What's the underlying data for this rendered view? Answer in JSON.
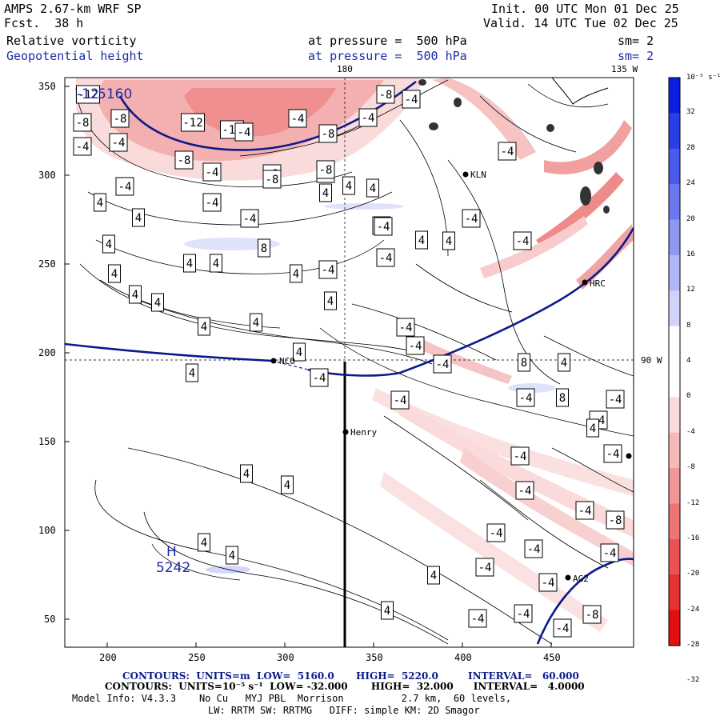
{
  "header": {
    "model": "AMPS 2.67-km WRF SP",
    "fcst": "Fcst.  38 h",
    "init": "Init. 00 UTC Mon 01 Dec 25",
    "valid": "Valid. 14 UTC Tue 02 Dec 25",
    "field1": "Relative vorticity",
    "field2": "Geopotential height",
    "press1": "at pressure =  500 hPa",
    "press2": "at pressure =  500 hPa",
    "sm1": "sm= 2",
    "sm2": "sm= 2"
  },
  "map": {
    "top_label_180": "180",
    "top_label_135w": "135 W",
    "right_label_90w": "90 W",
    "stations": [
      "KLN",
      "HRC",
      "NCO",
      "Henry",
      "AG2"
    ],
    "height_labels": [
      "5160",
      "5242"
    ],
    "high_marker": "H",
    "low_value_label": "-12"
  },
  "axes": {
    "x_ticks": [
      "200",
      "250",
      "300",
      "350",
      "400",
      "450"
    ],
    "y_ticks": [
      "50",
      "100",
      "150",
      "200",
      "250",
      "300",
      "350"
    ]
  },
  "colorbar": {
    "unit_label": "10⁻⁵ s⁻¹",
    "labels": [
      "32",
      "28",
      "24",
      "20",
      "16",
      "12",
      "8",
      "4",
      "0",
      "-4",
      "-8",
      "-12",
      "-16",
      "-20",
      "-24",
      "-28",
      "-32"
    ],
    "colors": [
      "#0a1ee0",
      "#2a3ee6",
      "#4a5aea",
      "#6c78ee",
      "#8e98f2",
      "#b0b6f6",
      "#d0d4fa",
      "#ffffff",
      "#ffffff",
      "#fbdada",
      "#f7b8b8",
      "#f39696",
      "#ef7474",
      "#eb5252",
      "#e73030",
      "#e31010"
    ]
  },
  "footer": {
    "line1a": "CONTOURS:  UNITS=m  LOW=  5160.0",
    "line1b": "HIGH=  5220.0",
    "line1c": "INTERVAL=   60.000",
    "line2": "CONTOURS:  UNITS=10⁻⁵ s⁻¹  LOW= -32.000       HIGH=  32.000      INTERVAL=   4.0000",
    "line3": "Model Info: V4.3.3    No Cu   MYJ PBL  Morrison          2.7 km,  60 levels,",
    "line4": "LW: RRTM SW: RRTMG   DIFF: simple KM: 2D Smagor"
  },
  "contour_labels": [
    {
      "v": "-12"
    },
    {
      "v": "-8"
    },
    {
      "v": "-8"
    },
    {
      "v": "-4"
    },
    {
      "v": "-4"
    },
    {
      "v": "-8"
    },
    {
      "v": "-12"
    },
    {
      "v": "-12"
    },
    {
      "v": "-8"
    },
    {
      "v": "-4"
    },
    {
      "v": "-8"
    },
    {
      "v": "-4"
    },
    {
      "v": "-4"
    },
    {
      "v": "-8"
    },
    {
      "v": "-4"
    },
    {
      "v": "-4"
    },
    {
      "v": "-8"
    },
    {
      "v": "-8"
    },
    {
      "v": "-4"
    },
    {
      "v": "4"
    },
    {
      "v": "4"
    },
    {
      "v": "4"
    },
    {
      "v": "4"
    },
    {
      "v": "-4"
    },
    {
      "v": "4"
    },
    {
      "v": "-4"
    },
    {
      "v": "4"
    },
    {
      "v": "-4"
    },
    {
      "v": "-4"
    },
    {
      "v": "8"
    },
    {
      "v": "4"
    },
    {
      "v": "4"
    },
    {
      "v": "4"
    },
    {
      "v": "-4"
    },
    {
      "v": "-4"
    },
    {
      "v": "4"
    },
    {
      "v": "4"
    },
    {
      "v": "4"
    },
    {
      "v": "4"
    },
    {
      "v": "-4"
    },
    {
      "v": "-4"
    },
    {
      "v": "4"
    },
    {
      "v": "4"
    },
    {
      "v": "-4"
    },
    {
      "v": "-4"
    },
    {
      "v": "4"
    },
    {
      "v": "-4"
    },
    {
      "v": "-4"
    },
    {
      "v": "8"
    },
    {
      "v": "4"
    },
    {
      "v": "4"
    },
    {
      "v": "-4"
    },
    {
      "v": "-4"
    },
    {
      "v": "8"
    },
    {
      "v": "4"
    },
    {
      "v": "-4"
    },
    {
      "v": "-4"
    },
    {
      "v": "-4"
    },
    {
      "v": "4"
    },
    {
      "v": "4"
    },
    {
      "v": "-4"
    },
    {
      "v": "-4"
    },
    {
      "v": "-4"
    },
    {
      "v": "-8"
    },
    {
      "v": "4"
    },
    {
      "v": "4"
    },
    {
      "v": "4"
    },
    {
      "v": "4"
    },
    {
      "v": "-4"
    },
    {
      "v": "-4"
    },
    {
      "v": "-4"
    },
    {
      "v": "4"
    },
    {
      "v": "-4"
    },
    {
      "v": "-4"
    },
    {
      "v": "4"
    },
    {
      "v": "-4"
    },
    {
      "v": "-4"
    },
    {
      "v": "-8"
    },
    {
      "v": "-4"
    },
    {
      "v": "-4"
    },
    {
      "v": "-4"
    }
  ]
}
